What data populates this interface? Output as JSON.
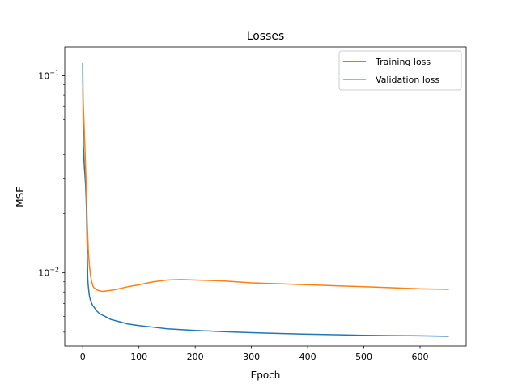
{
  "chart_data": {
    "type": "line",
    "title": "Losses",
    "xlabel": "Epoch",
    "ylabel": "MSE",
    "yscale": "log",
    "xlim": [
      -32,
      682
    ],
    "ylim": [
      0.00425,
      0.14
    ],
    "xticks": [
      0,
      100,
      200,
      300,
      400,
      500,
      600
    ],
    "xtick_labels": [
      "0",
      "100",
      "200",
      "300",
      "400",
      "500",
      "600"
    ],
    "yticks_major": [
      0.01,
      0.1
    ],
    "ytick_labels": [
      {
        "base": "10",
        "exp": "−2"
      },
      {
        "base": "10",
        "exp": "−1"
      }
    ],
    "yticks_minor": [
      0.005,
      0.006,
      0.007,
      0.008,
      0.009,
      0.02,
      0.03,
      0.04,
      0.05,
      0.06,
      0.07,
      0.08,
      0.09
    ],
    "grid": false,
    "legend": "top-right",
    "series": [
      {
        "name": "Training loss",
        "color": "#1f77b4",
        "x": [
          0,
          1,
          2,
          3,
          4,
          5,
          6,
          7,
          8,
          9,
          10,
          11,
          12,
          14,
          16,
          18,
          20,
          25,
          30,
          40,
          50,
          60,
          80,
          100,
          125,
          150,
          200,
          250,
          300,
          350,
          400,
          450,
          500,
          550,
          600,
          650
        ],
        "y": [
          0.115,
          0.045,
          0.038,
          0.034,
          0.031,
          0.028,
          0.024,
          0.019,
          0.0125,
          0.0092,
          0.0085,
          0.008,
          0.0076,
          0.0072,
          0.007,
          0.0068,
          0.0067,
          0.0064,
          0.0062,
          0.006,
          0.0058,
          0.0057,
          0.0055,
          0.0054,
          0.0053,
          0.0052,
          0.0051,
          0.00503,
          0.00497,
          0.00492,
          0.00488,
          0.00485,
          0.00482,
          0.0048,
          0.00479,
          0.00477
        ]
      },
      {
        "name": "Validation loss",
        "color": "#ff7f0e",
        "x": [
          0,
          2,
          4,
          6,
          8,
          10,
          12,
          14,
          16,
          18,
          20,
          25,
          30,
          35,
          40,
          50,
          60,
          80,
          100,
          125,
          150,
          175,
          200,
          250,
          300,
          350,
          400,
          450,
          500,
          550,
          600,
          650
        ],
        "y": [
          0.086,
          0.06,
          0.042,
          0.028,
          0.018,
          0.0128,
          0.0108,
          0.0096,
          0.009,
          0.0086,
          0.0084,
          0.0082,
          0.0081,
          0.00805,
          0.00808,
          0.00815,
          0.00825,
          0.0085,
          0.0087,
          0.009,
          0.0092,
          0.00925,
          0.0092,
          0.0091,
          0.0089,
          0.0088,
          0.0087,
          0.0086,
          0.0085,
          0.0084,
          0.0083,
          0.00825
        ]
      }
    ]
  }
}
